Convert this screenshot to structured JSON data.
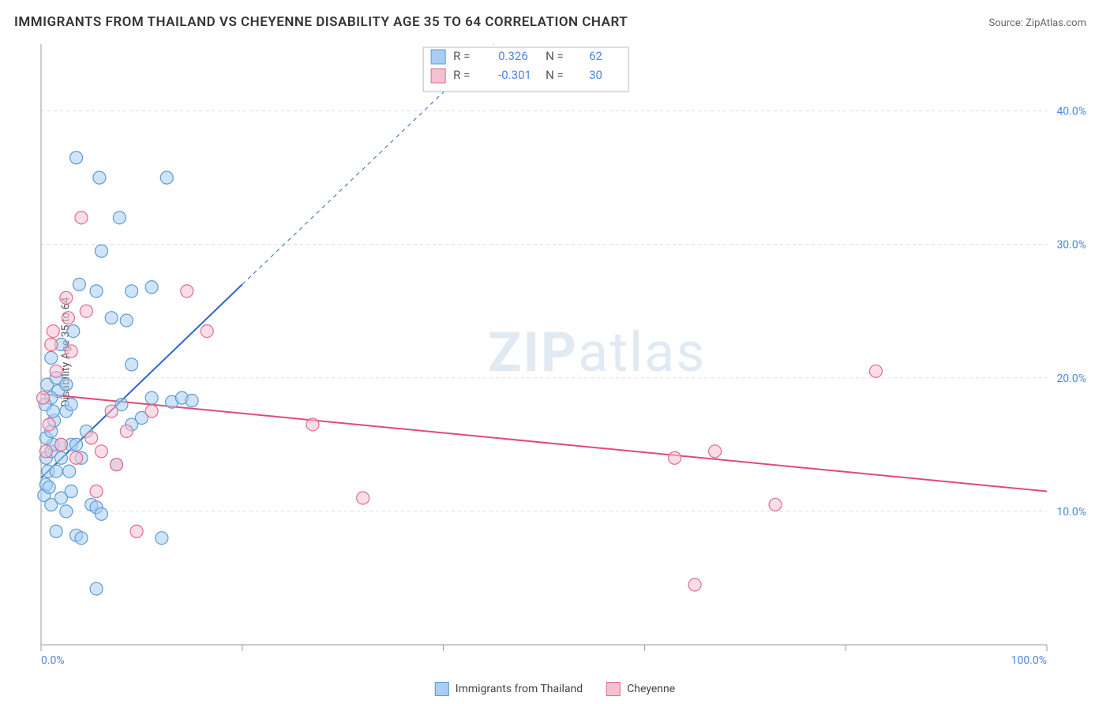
{
  "title": "IMMIGRANTS FROM THAILAND VS CHEYENNE DISABILITY AGE 35 TO 64 CORRELATION CHART",
  "source": "Source: ZipAtlas.com",
  "ylabel": "Disability Age 35 to 64",
  "watermark_bold": "ZIP",
  "watermark_rest": "atlas",
  "chart": {
    "type": "scatter",
    "background_color": "#ffffff",
    "grid_color": "#dddddd",
    "axis_color": "#999999",
    "xlim": [
      0,
      100
    ],
    "ylim": [
      0,
      45
    ],
    "x_ticks": [
      0,
      20,
      40,
      60,
      80,
      100
    ],
    "x_tick_labels": {
      "0": "0.0%",
      "100": "100.0%"
    },
    "y_ticks": [
      10,
      20,
      30,
      40
    ],
    "y_tick_labels": {
      "10": "10.0%",
      "20": "20.0%",
      "30": "30.0%",
      "40": "40.0%"
    },
    "tick_label_color": "#4a86e8",
    "tick_label_fontsize": 14,
    "marker_radius": 8,
    "marker_opacity": 0.55,
    "legend": {
      "box_border": "#bbbbbb",
      "label_R": "R  =",
      "label_N": "N  =",
      "text_color": "#555555",
      "value_color": "#4a86e8"
    },
    "series": [
      {
        "name": "Immigrants from Thailand",
        "fill": "#a9cef4",
        "stroke": "#5b9bd5",
        "r_value": "0.326",
        "n_value": "62",
        "trend": {
          "x1": 0,
          "y1": 12.5,
          "x2": 20,
          "y2": 27,
          "extend_dash_to_x": 45,
          "extend_dash_to_y": 45,
          "color": "#2b66c4",
          "width": 2
        },
        "points": [
          [
            0.3,
            11.2
          ],
          [
            0.5,
            12.0
          ],
          [
            0.5,
            14.0
          ],
          [
            0.8,
            11.8
          ],
          [
            0.7,
            13.0
          ],
          [
            1.0,
            14.5
          ],
          [
            1.2,
            15.0
          ],
          [
            0.5,
            15.5
          ],
          [
            1.0,
            16.0
          ],
          [
            1.3,
            16.8
          ],
          [
            1.5,
            13.0
          ],
          [
            1.2,
            17.5
          ],
          [
            1.7,
            19.0
          ],
          [
            1.0,
            18.5
          ],
          [
            0.4,
            18.0
          ],
          [
            0.6,
            19.5
          ],
          [
            2.0,
            14.0
          ],
          [
            2.0,
            15.0
          ],
          [
            2.5,
            17.5
          ],
          [
            2.8,
            13.0
          ],
          [
            1.5,
            20.0
          ],
          [
            1.0,
            21.5
          ],
          [
            2.0,
            22.5
          ],
          [
            2.5,
            19.5
          ],
          [
            3.0,
            18.0
          ],
          [
            3.0,
            15.0
          ],
          [
            3.5,
            15.0
          ],
          [
            4.0,
            14.0
          ],
          [
            4.5,
            16.0
          ],
          [
            5.0,
            10.5
          ],
          [
            5.5,
            10.3
          ],
          [
            3.5,
            8.2
          ],
          [
            4.0,
            8.0
          ],
          [
            6.0,
            9.8
          ],
          [
            7.5,
            13.5
          ],
          [
            8.0,
            18.0
          ],
          [
            9.0,
            16.5
          ],
          [
            10.0,
            17.0
          ],
          [
            11.0,
            18.5
          ],
          [
            12.0,
            8.0
          ],
          [
            13.0,
            18.2
          ],
          [
            14.0,
            18.5
          ],
          [
            15.0,
            18.3
          ],
          [
            5.5,
            4.2
          ],
          [
            3.5,
            36.5
          ],
          [
            5.8,
            35.0
          ],
          [
            7.8,
            32.0
          ],
          [
            12.5,
            35.0
          ],
          [
            6.0,
            29.5
          ],
          [
            3.8,
            27.0
          ],
          [
            5.5,
            26.5
          ],
          [
            9.0,
            26.5
          ],
          [
            11.0,
            26.8
          ],
          [
            7.0,
            24.5
          ],
          [
            8.5,
            24.3
          ],
          [
            9.0,
            21.0
          ],
          [
            3.2,
            23.5
          ],
          [
            1.0,
            10.5
          ],
          [
            2.0,
            11.0
          ],
          [
            1.5,
            8.5
          ],
          [
            2.5,
            10.0
          ],
          [
            3.0,
            11.5
          ]
        ]
      },
      {
        "name": "Cheyenne",
        "fill": "#f6c1cf",
        "stroke": "#e16b8c",
        "r_value": "-0.301",
        "n_value": "30",
        "trend": {
          "x1": 0,
          "y1": 18.8,
          "x2": 100,
          "y2": 11.5,
          "color": "#e04a7a",
          "width": 2
        },
        "points": [
          [
            0.2,
            18.5
          ],
          [
            0.5,
            14.5
          ],
          [
            1.0,
            22.5
          ],
          [
            1.2,
            23.5
          ],
          [
            2.5,
            26.0
          ],
          [
            2.7,
            24.5
          ],
          [
            3.0,
            22.0
          ],
          [
            4.0,
            32.0
          ],
          [
            4.5,
            25.0
          ],
          [
            5.0,
            15.5
          ],
          [
            6.0,
            14.5
          ],
          [
            7.0,
            17.5
          ],
          [
            7.5,
            13.5
          ],
          [
            8.5,
            16.0
          ],
          [
            9.5,
            8.5
          ],
          [
            11.0,
            17.5
          ],
          [
            14.5,
            26.5
          ],
          [
            16.5,
            23.5
          ],
          [
            27.0,
            16.5
          ],
          [
            32.0,
            11.0
          ],
          [
            63.0,
            14.0
          ],
          [
            67.0,
            14.5
          ],
          [
            73.0,
            10.5
          ],
          [
            65.0,
            4.5
          ],
          [
            83.0,
            20.5
          ],
          [
            1.5,
            20.5
          ],
          [
            0.8,
            16.5
          ],
          [
            2.0,
            15.0
          ],
          [
            3.5,
            14.0
          ],
          [
            5.5,
            11.5
          ]
        ]
      }
    ]
  }
}
